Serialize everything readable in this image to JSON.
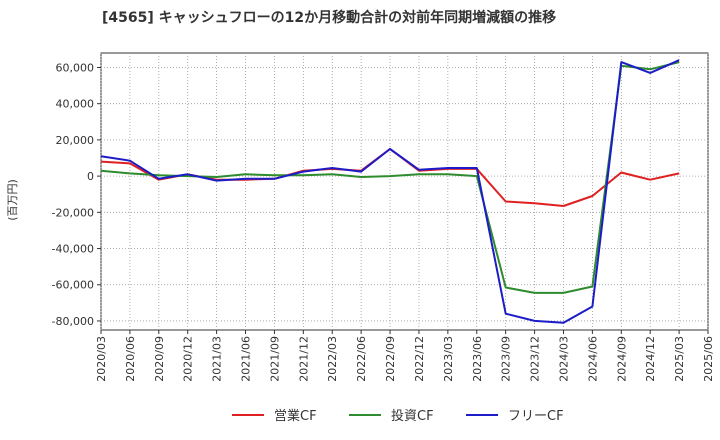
{
  "chart_data": {
    "type": "line",
    "title": "[4565]  キャッシュフローの12か月移動合計の対前年同期増減額の推移",
    "ylabel": "(百万円)",
    "xlabel": "",
    "ylim": [
      -85000,
      68000
    ],
    "yticks": [
      60000,
      40000,
      20000,
      0,
      -20000,
      -40000,
      -60000,
      -80000
    ],
    "ytick_labels": [
      "60,000",
      "40,000",
      "20,000",
      "0",
      "-20,000",
      "-40,000",
      "-60,000",
      "-80,000"
    ],
    "categories": [
      "2020/03",
      "2020/06",
      "2020/09",
      "2020/12",
      "2021/03",
      "2021/06",
      "2021/09",
      "2021/12",
      "2022/03",
      "2022/06",
      "2022/09",
      "2022/12",
      "2023/03",
      "2023/06",
      "2023/09",
      "2023/12",
      "2024/03",
      "2024/06",
      "2024/09",
      "2024/12",
      "2025/03",
      "2025/06"
    ],
    "grid": true,
    "legend_position": "bottom",
    "series": [
      {
        "name": "営業CF",
        "color": "#e02020",
        "values": [
          8000,
          7000,
          -2000,
          1000,
          -2000,
          -2000,
          -1500,
          3000,
          4000,
          3000,
          15000,
          3000,
          4000,
          4000,
          -14000,
          -15000,
          -16500,
          -11000,
          2000,
          -2000,
          1500,
          null
        ]
      },
      {
        "name": "投資CF",
        "color": "#2e8b2e",
        "values": [
          3000,
          1500,
          500,
          0,
          -500,
          1000,
          500,
          500,
          1000,
          -500,
          0,
          1000,
          1000,
          0,
          -61500,
          -64500,
          -64500,
          -61000,
          61000,
          59000,
          63000,
          null
        ]
      },
      {
        "name": "フリーCF",
        "color": "#1c1cc8",
        "values": [
          11000,
          8500,
          -1500,
          1000,
          -2500,
          -1500,
          -1500,
          2500,
          4500,
          2500,
          15000,
          3500,
          4500,
          4500,
          -76000,
          -80000,
          -81000,
          -72000,
          63000,
          57000,
          64000,
          null
        ]
      }
    ]
  }
}
